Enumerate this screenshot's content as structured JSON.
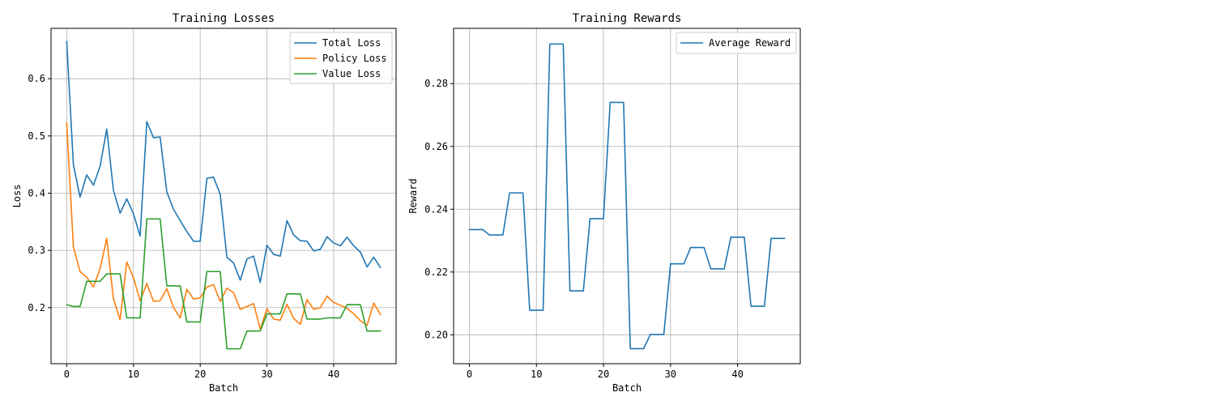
{
  "figure": {
    "charts": [
      {
        "title": "Training Losses",
        "xlabel": "Batch",
        "ylabel": "Loss"
      },
      {
        "title": "Training Rewards",
        "xlabel": "Batch",
        "ylabel": "Reward"
      }
    ]
  },
  "colors": {
    "blue": "#1f77b4",
    "orange": "#ff7f0e",
    "green": "#2ca02c",
    "grid": "#b0b0b0"
  },
  "chart_data": [
    {
      "type": "line",
      "title": "Training Losses",
      "xlabel": "Batch",
      "ylabel": "Loss",
      "xlim": [
        -2.35,
        49.35
      ],
      "ylim": [
        0.102,
        0.688
      ],
      "xticks": [
        0,
        10,
        20,
        30,
        40
      ],
      "yticks": [
        0.2,
        0.3,
        0.4,
        0.5,
        0.6
      ],
      "grid": true,
      "legend_position": "top-right",
      "x": [
        0,
        1,
        2,
        3,
        4,
        5,
        6,
        7,
        8,
        9,
        10,
        11,
        12,
        13,
        14,
        15,
        16,
        17,
        18,
        19,
        20,
        21,
        22,
        23,
        24,
        25,
        26,
        27,
        28,
        29,
        30,
        31,
        32,
        33,
        34,
        35,
        36,
        37,
        38,
        39,
        40,
        41,
        42,
        43,
        44,
        45,
        46,
        47
      ],
      "series": [
        {
          "name": "Total Loss",
          "color": "#1f77b4",
          "values": [
            0.665,
            0.45,
            0.393,
            0.432,
            0.414,
            0.447,
            0.512,
            0.405,
            0.365,
            0.39,
            0.364,
            0.325,
            0.525,
            0.497,
            0.498,
            0.402,
            0.372,
            0.352,
            0.333,
            0.316,
            0.316,
            0.426,
            0.428,
            0.398,
            0.288,
            0.278,
            0.248,
            0.285,
            0.29,
            0.244,
            0.309,
            0.293,
            0.29,
            0.352,
            0.327,
            0.317,
            0.316,
            0.299,
            0.302,
            0.324,
            0.313,
            0.308,
            0.323,
            0.308,
            0.297,
            0.271,
            0.288,
            0.27
          ]
        },
        {
          "name": "Policy Loss",
          "color": "#ff7f0e",
          "values": [
            0.523,
            0.306,
            0.263,
            0.253,
            0.236,
            0.268,
            0.321,
            0.215,
            0.179,
            0.28,
            0.252,
            0.212,
            0.242,
            0.211,
            0.212,
            0.233,
            0.2,
            0.182,
            0.232,
            0.215,
            0.217,
            0.236,
            0.24,
            0.211,
            0.234,
            0.226,
            0.197,
            0.202,
            0.207,
            0.162,
            0.198,
            0.18,
            0.178,
            0.206,
            0.181,
            0.171,
            0.214,
            0.197,
            0.2,
            0.22,
            0.209,
            0.204,
            0.199,
            0.189,
            0.177,
            0.169,
            0.208,
            0.188
          ]
        },
        {
          "name": "Value Loss",
          "color": "#2ca02c",
          "values": [
            0.205,
            0.202,
            0.202,
            0.246,
            0.246,
            0.246,
            0.259,
            0.259,
            0.259,
            0.182,
            0.182,
            0.182,
            0.355,
            0.355,
            0.355,
            0.238,
            0.238,
            0.238,
            0.175,
            0.175,
            0.175,
            0.263,
            0.263,
            0.263,
            0.128,
            0.128,
            0.128,
            0.159,
            0.159,
            0.159,
            0.189,
            0.189,
            0.189,
            0.224,
            0.224,
            0.224,
            0.18,
            0.18,
            0.18,
            0.182,
            0.182,
            0.182,
            0.205,
            0.205,
            0.205,
            0.159,
            0.159,
            0.159
          ]
        }
      ]
    },
    {
      "type": "line",
      "title": "Training Rewards",
      "xlabel": "Batch",
      "ylabel": "Reward",
      "xlim": [
        -2.35,
        49.35
      ],
      "ylim": [
        0.1908,
        0.2976
      ],
      "xticks": [
        0,
        10,
        20,
        30,
        40
      ],
      "yticks": [
        0.2,
        0.22,
        0.24,
        0.26,
        0.28
      ],
      "ytick_format": 2,
      "grid": true,
      "legend_position": "top-right",
      "x": [
        0,
        1,
        2,
        3,
        4,
        5,
        6,
        7,
        8,
        9,
        10,
        11,
        12,
        13,
        14,
        15,
        16,
        17,
        18,
        19,
        20,
        21,
        22,
        23,
        24,
        25,
        26,
        27,
        28,
        29,
        30,
        31,
        32,
        33,
        34,
        35,
        36,
        37,
        38,
        39,
        40,
        41,
        42,
        43,
        44,
        45,
        46,
        47
      ],
      "series": [
        {
          "name": "Average Reward",
          "color": "#1f77b4",
          "values": [
            0.2335,
            0.2335,
            0.2335,
            0.2318,
            0.2318,
            0.2318,
            0.2452,
            0.2452,
            0.2452,
            0.2078,
            0.2078,
            0.2078,
            0.2926,
            0.2926,
            0.2926,
            0.214,
            0.214,
            0.214,
            0.237,
            0.237,
            0.237,
            0.274,
            0.274,
            0.274,
            0.1956,
            0.1956,
            0.1956,
            0.2001,
            0.2001,
            0.2001,
            0.2226,
            0.2226,
            0.2226,
            0.2278,
            0.2278,
            0.2278,
            0.221,
            0.221,
            0.221,
            0.2311,
            0.2311,
            0.2311,
            0.2091,
            0.2091,
            0.2091,
            0.2307,
            0.2307,
            0.2307
          ]
        }
      ]
    }
  ]
}
